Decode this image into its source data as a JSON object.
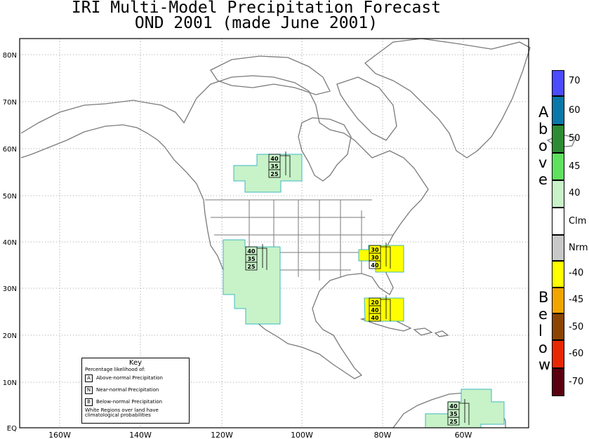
{
  "title": {
    "line1": "IRI Multi-Model Precipitation Forecast",
    "line2": "OND 2001 (made June 2001)"
  },
  "axes": {
    "x_labels": [
      "160W",
      "140W",
      "120W",
      "100W",
      "80W",
      "60W"
    ],
    "y_labels": [
      "80N",
      "70N",
      "60N",
      "50N",
      "40N",
      "30N",
      "20N",
      "10N",
      "EQ"
    ]
  },
  "key": {
    "title": "Key",
    "subtitle": "Percentage likelihood of:",
    "items": [
      {
        "letter": "A",
        "text": "Above-normal Precipitation"
      },
      {
        "letter": "N",
        "text": "Near-normal Precipitation"
      },
      {
        "letter": "B",
        "text": "Below-normal Precipitation"
      }
    ],
    "note": "White Regions over land have climatological probabilities"
  },
  "colorbar": {
    "above_word": "Above",
    "below_word": "Below",
    "items": [
      {
        "label": "70",
        "color": "#4b4bff"
      },
      {
        "label": "60",
        "color": "#0a78a8"
      },
      {
        "label": "50",
        "color": "#2e8b35"
      },
      {
        "label": "45",
        "color": "#5fe05f"
      },
      {
        "label": "40",
        "color": "#c8f2c8"
      },
      {
        "label": "Clm",
        "color": "#ffffff"
      },
      {
        "label": "Nrm",
        "color": "#c8c8c8"
      },
      {
        "label": "-40",
        "color": "#ffff00"
      },
      {
        "label": "-45",
        "color": "#f0a500"
      },
      {
        "label": "-50",
        "color": "#8b4500"
      },
      {
        "label": "-60",
        "color": "#e82800"
      },
      {
        "label": "-70",
        "color": "#5a0010"
      }
    ]
  },
  "regions": [
    {
      "name": "Western Canada",
      "category": "above",
      "color": "#c8f2c8",
      "probs": [
        "40",
        "35",
        "25"
      ]
    },
    {
      "name": "Southwest US / Mexico",
      "category": "above",
      "color": "#c8f2c8",
      "probs": [
        "40",
        "35",
        "25"
      ]
    },
    {
      "name": "Southeast US",
      "category": "below",
      "color": "#ffff00",
      "probs": [
        "30",
        "30",
        "40"
      ]
    },
    {
      "name": "Florida / Bahamas",
      "category": "below",
      "color": "#ffff00",
      "probs": [
        "20",
        "40",
        "40"
      ]
    },
    {
      "name": "Northern South America",
      "category": "above",
      "color": "#c8f2c8",
      "probs": [
        "40",
        "35",
        "25"
      ]
    }
  ]
}
